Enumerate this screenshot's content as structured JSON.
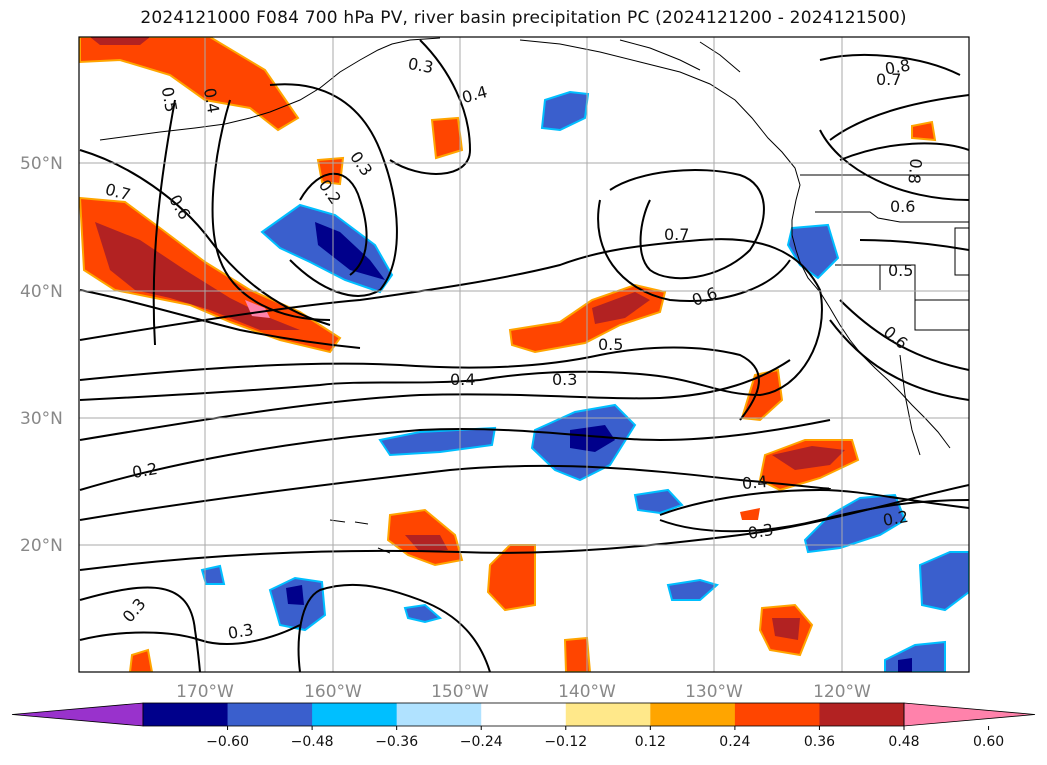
{
  "title": "2024121000 F084 700 hPa PV, river basin precipitation PC (2024121200 - 2024121500)",
  "lat_labels": [
    "50°N",
    "40°N",
    "30°N",
    "20°N"
  ],
  "lon_labels": [
    "170°W",
    "160°W",
    "150°W",
    "140°W",
    "130°W",
    "120°W"
  ],
  "colorbar": {
    "ticks": [
      "−0.60",
      "−0.48",
      "−0.36",
      "−0.24",
      "−0.12",
      "0.12",
      "0.24",
      "0.36",
      "0.48",
      "0.60"
    ],
    "colors": [
      "#9932cc",
      "#00008b",
      "#3a5fcd",
      "#00bfff",
      "#b0e2ff",
      "#ffffff",
      "#ffe88a",
      "#ffa500",
      "#ff4500",
      "#b22222",
      "#ff82ab"
    ]
  },
  "contour_labels": [
    "0.5",
    "0.4",
    "0.3",
    "0.4",
    "0.8",
    "0.7",
    "0.7",
    "0.3",
    "0.2",
    "0.8",
    "0.6",
    "0.6",
    "0.5",
    "0.6",
    "0.7",
    "0.5",
    "0.6",
    "0.4",
    "0.3",
    "0.2",
    "0.4",
    "0.3",
    "0.2",
    "0.3",
    "0.3"
  ]
}
